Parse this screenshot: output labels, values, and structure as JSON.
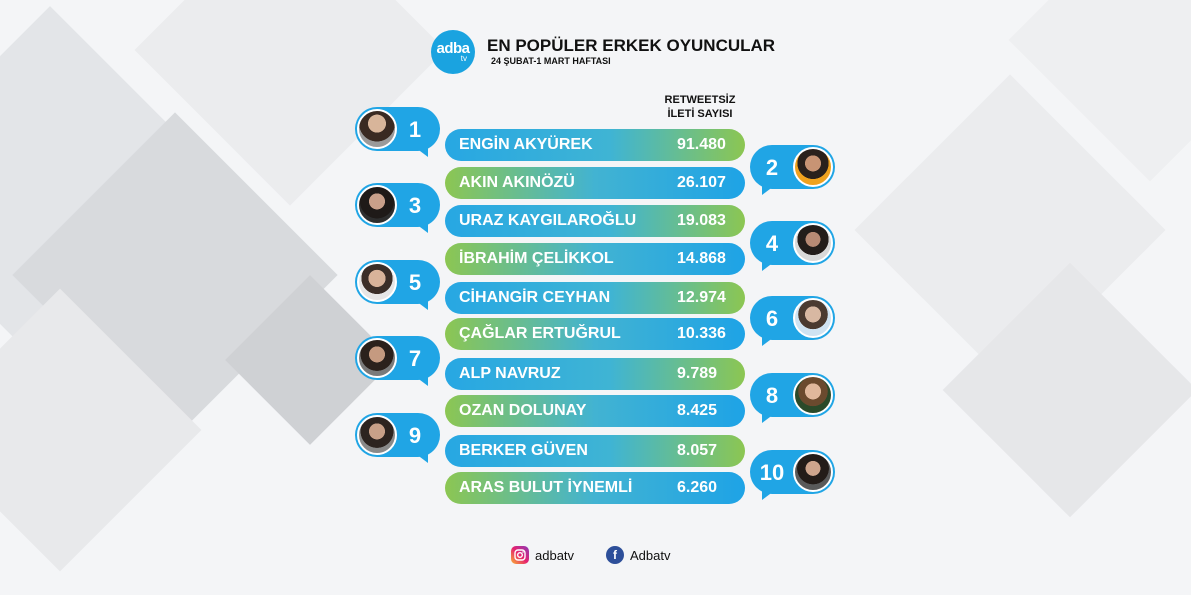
{
  "header": {
    "logo_main": "adba",
    "logo_sub": "tv",
    "title": "EN POPÜLER ERKEK OYUNCULAR",
    "subtitle": "24 ŞUBAT-1 MART HAFTASI",
    "column_header_line1": "RETWEETSİZ",
    "column_header_line2": "İLETİ SAYISI"
  },
  "entries": [
    {
      "rank": "1",
      "name": "ENGİN AKYÜREK",
      "value": "91.480"
    },
    {
      "rank": "2",
      "name": "AKIN AKINÖZÜ",
      "value": "26.107"
    },
    {
      "rank": "3",
      "name": "URAZ KAYGILAROĞLU",
      "value": "19.083"
    },
    {
      "rank": "4",
      "name": "İBRAHİM ÇELİKKOL",
      "value": "14.868"
    },
    {
      "rank": "5",
      "name": "CİHANGİR CEYHAN",
      "value": "12.974"
    },
    {
      "rank": "6",
      "name": "ÇAĞLAR ERTUĞRUL",
      "value": "10.336"
    },
    {
      "rank": "7",
      "name": "ALP NAVRUZ",
      "value": "9.789"
    },
    {
      "rank": "8",
      "name": "OZAN DOLUNAY",
      "value": "8.425"
    },
    {
      "rank": "9",
      "name": "BERKER GÜVEN",
      "value": "8.057"
    },
    {
      "rank": "10",
      "name": "ARAS BULUT İYNEMLİ",
      "value": "6.260"
    }
  ],
  "footer": {
    "instagram": "adbatv",
    "facebook": "Adbatv",
    "instagram_icon": "instagram-icon",
    "facebook_icon": "facebook-icon"
  },
  "colors": {
    "blue": "#20a5e5",
    "green": "#8cc652"
  }
}
